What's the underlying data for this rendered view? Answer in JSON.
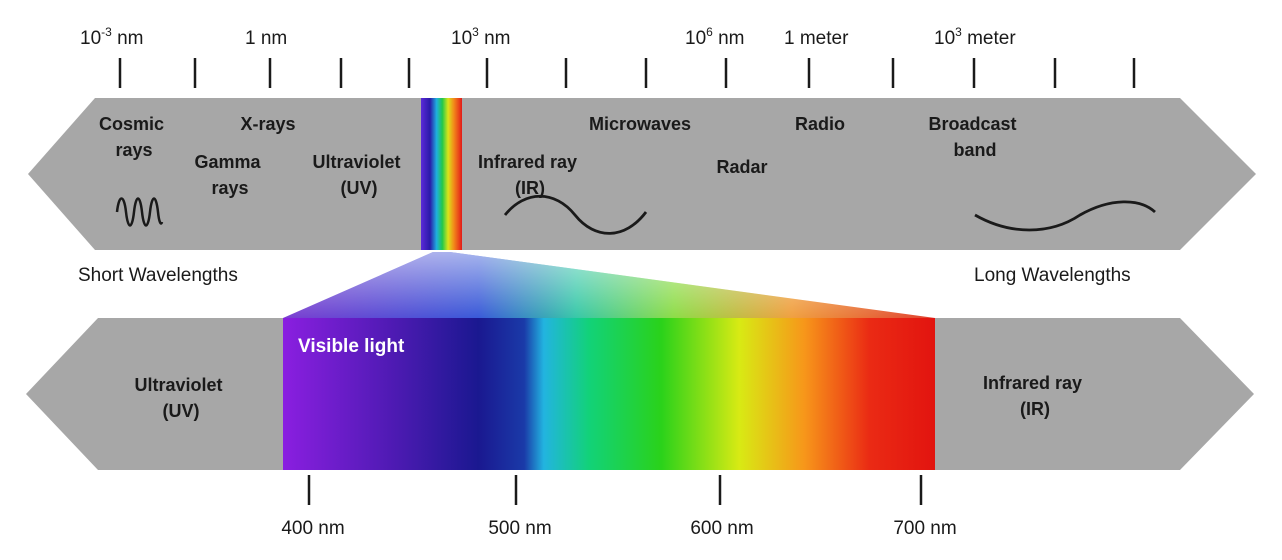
{
  "scale": {
    "labels": [
      {
        "base": "10",
        "exp": "-3",
        "unit": " nm"
      },
      {
        "base": "1 nm",
        "exp": "",
        "unit": ""
      },
      {
        "base": "10",
        "exp": "3",
        "unit": " nm"
      },
      {
        "base": "10",
        "exp": "6",
        "unit": " nm"
      },
      {
        "base": "1 meter",
        "exp": "",
        "unit": ""
      },
      {
        "base": "10",
        "exp": "3",
        "unit": " meter"
      }
    ]
  },
  "spectrum": {
    "cosmic": [
      "Cosmic",
      "rays"
    ],
    "xrays": "X-rays",
    "gamma": [
      "Gamma",
      "rays"
    ],
    "uv": [
      "Ultraviolet",
      "(UV)"
    ],
    "infrared": [
      "Infrared ray",
      "(IR)"
    ],
    "microwaves": "Microwaves",
    "radar": "Radar",
    "radio": "Radio",
    "broadcast": [
      "Broadcast",
      "band"
    ]
  },
  "sides": {
    "short": "Short Wavelengths",
    "long": "Long Wavelengths"
  },
  "visible": {
    "title": "Visible light",
    "uv": [
      "Ultraviolet",
      "(UV)"
    ],
    "ir": [
      "Infrared ray",
      "(IR)"
    ],
    "ticks": [
      "400 nm",
      "500 nm",
      "600 nm",
      "700 nm"
    ]
  },
  "colors": {
    "band": "#a7a7a7",
    "text": "#1a1a1a",
    "visible_label": "#ffffff"
  }
}
